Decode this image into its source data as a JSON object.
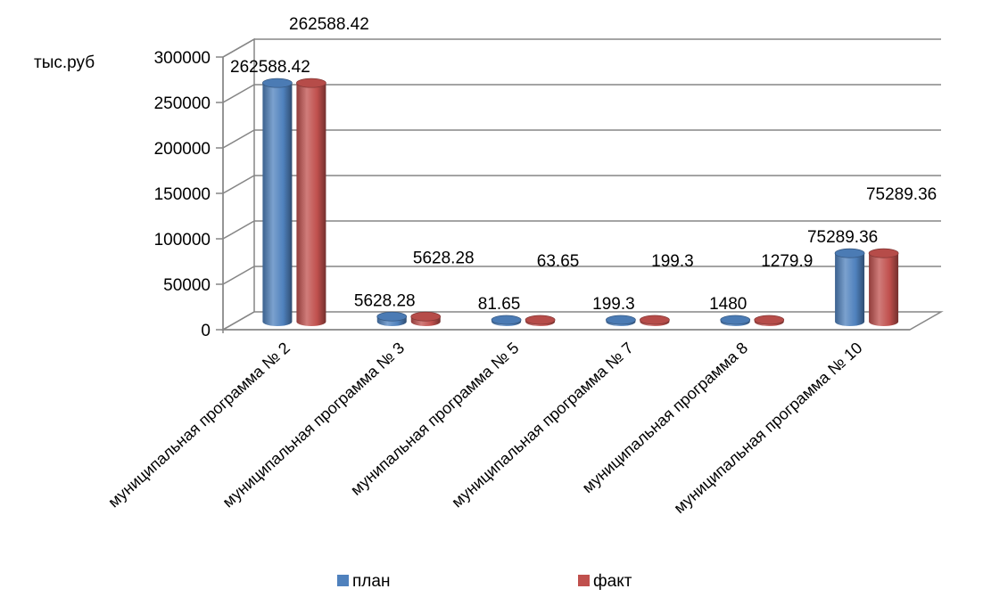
{
  "chart_data": {
    "type": "bar",
    "variant": "3d-cylinder",
    "title": "",
    "xlabel": "",
    "ylabel": "тыс.руб",
    "ylim": [
      0,
      300000
    ],
    "yticks": [
      0,
      50000,
      100000,
      150000,
      200000,
      250000,
      300000
    ],
    "grid": true,
    "legend_position": "bottom",
    "categories": [
      "муниципальная программа № 2",
      "муниципальная программа № 3",
      "мунипальная программа № 5",
      "муниципальная программа № 7",
      "муниципальная программа 8",
      "муниципальная программа № 10"
    ],
    "series": [
      {
        "name": "план",
        "color": "#4F81BD",
        "values": [
          262588.42,
          5628.28,
          81.65,
          199.3,
          1480,
          75289.36
        ],
        "labels": [
          "262588.42",
          "5628.28",
          "81.65",
          "199.3",
          "1480",
          "75289.36"
        ]
      },
      {
        "name": "факт",
        "color": "#C0504D",
        "values": [
          262588.42,
          5628.28,
          63.65,
          199.3,
          1279.9,
          75289.36
        ],
        "labels": [
          "262588.42",
          "5628.28",
          "63.65",
          "199.3",
          "1279.9",
          "75289.36"
        ]
      }
    ]
  }
}
